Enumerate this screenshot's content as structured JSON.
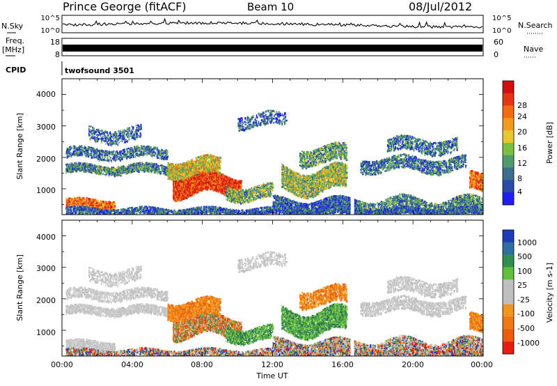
{
  "header": {
    "title": "Prince George (fitACF)",
    "beam": "Beam 10",
    "date": "08/Jul/2012"
  },
  "nsky_panel": {
    "left_label": "N.Sky",
    "right_label": "N.Search",
    "left_ticks": [
      "10^5",
      "10^0"
    ],
    "right_ticks": [
      "10^5",
      "10^0"
    ]
  },
  "freq_panel": {
    "left_label_1": "Freq.",
    "left_label_2": "[MHz]",
    "left_ticks": [
      "18",
      "8"
    ],
    "right_label": "Nave",
    "right_ticks": [
      "60",
      "0"
    ]
  },
  "cpid_panel": {
    "label": "CPID",
    "text": "twofsound 3501"
  },
  "chart_data": [
    {
      "type": "heatmap",
      "name": "power",
      "ylabel": "Slant Range [km]",
      "xlabel": "",
      "yticks": [
        "4000",
        "3000",
        "2000",
        "1000"
      ],
      "ylim": [
        180,
        4500
      ],
      "xlim_hours": [
        0,
        24
      ],
      "colorbar_label": "Power [dB]",
      "colorbar_ticks": [
        "28",
        "24",
        "20",
        "16",
        "12",
        "8",
        "4"
      ],
      "colorbar_colors": [
        "#1e1ef0",
        "#2a4aa8",
        "#3c6e8c",
        "#4e9b6e",
        "#7cc042",
        "#e8c82a",
        "#f39c1c",
        "#f46a14",
        "#e83214",
        "#d20f0f"
      ]
    },
    {
      "type": "heatmap",
      "name": "velocity",
      "ylabel": "Slant Range [km]",
      "xlabel": "Time UT",
      "yticks": [
        "4000",
        "3000",
        "2000",
        "1000"
      ],
      "ylim": [
        180,
        4500
      ],
      "xlim_hours": [
        0,
        24
      ],
      "xticks": [
        "00:00",
        "04:00",
        "08:00",
        "12:00",
        "16:00",
        "20:00",
        "00:00"
      ],
      "colorbar_label": "Velocity [m s-1]",
      "colorbar_ticks": [
        "1000",
        "500",
        "100",
        "25",
        "-25",
        "-100",
        "-500",
        "-1000"
      ],
      "colorbar_colors": [
        "#1e3cb4",
        "#2e6fa0",
        "#2f8f4e",
        "#5fbf3c",
        "#bfbfbf",
        "#bfbfbf",
        "#f0961e",
        "#f07814",
        "#f05a0f",
        "#e61e0f"
      ]
    }
  ]
}
